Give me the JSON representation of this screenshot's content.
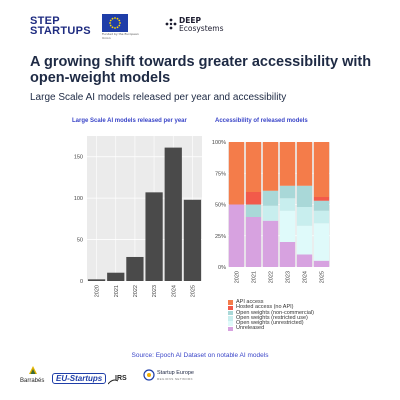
{
  "logos": {
    "step_line1": "STEP",
    "step_line2": "STARTUPS",
    "eu_caption": "Funded by the European Union",
    "deep_line1": "DEEP",
    "deep_line2": "Ecosystems",
    "barrabes": "Barrabés",
    "eu_startups": "EU-Startups",
    "irs": "IRS",
    "startup_europe_title": "Startup Europe",
    "startup_europe_sub": "REGIONS NETWORK"
  },
  "headline": "A growing shift towards greater accessibility with open-weight models",
  "subtitle": "Large Scale AI models released per year and accessibility",
  "source": "Source:  Epoch AI Dataset on notable AI models",
  "colors": {
    "bar": "#4a4a4a",
    "panel_bg": "#ebebeb",
    "grid": "#ffffff",
    "api_access": "#f47c4a",
    "hosted_access": "#f25a4a",
    "open_noncommercial": "#a9d8d8",
    "open_restricted": "#c8eeee",
    "open_unrestricted": "#dffafa",
    "unreleased": "#d7a2e0"
  },
  "chart_data": [
    {
      "type": "bar",
      "title": "Large Scale AI models released per year",
      "categories": [
        "2020",
        "2021",
        "2022",
        "2023",
        "2024",
        "2025"
      ],
      "values": [
        2,
        10,
        29,
        107,
        161,
        98
      ],
      "ylim": [
        0,
        175
      ],
      "yticks": [
        0,
        50,
        100,
        150
      ],
      "grid": true,
      "xlabel": "",
      "ylabel": ""
    },
    {
      "type": "bar",
      "stacked": true,
      "title": "Accessibility of released models",
      "categories": [
        "2020",
        "2021",
        "2022",
        "2023",
        "2024",
        "2025"
      ],
      "ylim": [
        0,
        100
      ],
      "yticks": [
        "0%",
        "25%",
        "50%",
        "75%",
        "100%"
      ],
      "grid": true,
      "series": [
        {
          "name": "Unreleased",
          "color_key": "unreleased",
          "values": [
            50,
            40,
            37,
            20,
            10,
            5
          ]
        },
        {
          "name": "Open weights (unrestricted)",
          "color_key": "open_unrestricted",
          "values": [
            0,
            0,
            0,
            25,
            23,
            30
          ]
        },
        {
          "name": "Open weights (restricted use)",
          "color_key": "open_restricted",
          "values": [
            0,
            0,
            12,
            10,
            15,
            10
          ]
        },
        {
          "name": "Open weights (non-commercial)",
          "color_key": "open_noncommercial",
          "values": [
            0,
            10,
            12,
            10,
            17,
            8
          ]
        },
        {
          "name": "Hosted access (no API)",
          "color_key": "hosted_access",
          "values": [
            0,
            10,
            0,
            0,
            0,
            3
          ]
        },
        {
          "name": "API access",
          "color_key": "api_access",
          "values": [
            50,
            40,
            39,
            35,
            35,
            44
          ]
        }
      ],
      "legend": {
        "position": "bottom",
        "order": [
          "API access",
          "Hosted access (no API)",
          "Open weights (non-commercial)",
          "Open weights (restricted use)",
          "Open weights (unrestricted)",
          "Unreleased"
        ]
      }
    }
  ]
}
